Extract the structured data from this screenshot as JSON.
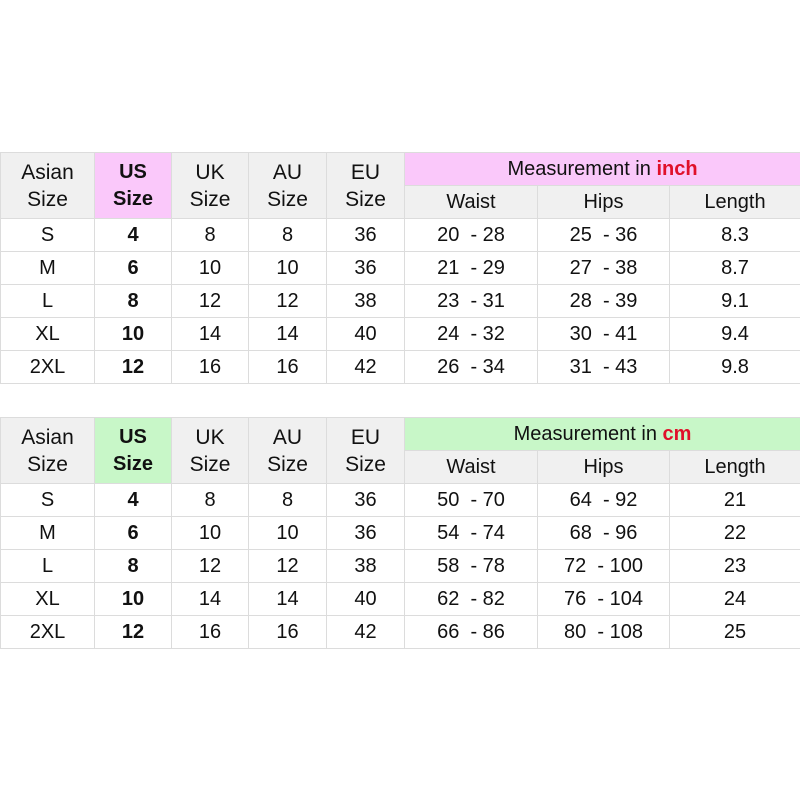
{
  "colors": {
    "inch_accent": "#fac8fa",
    "cm_accent": "#c8f7c8",
    "unit_text": "#e0102a",
    "header_bg": "#f0f0f0"
  },
  "headers": {
    "asian": [
      "Asian",
      "Size"
    ],
    "us": [
      "US",
      "Size"
    ],
    "uk": [
      "UK",
      "Size"
    ],
    "au": [
      "AU",
      "Size"
    ],
    "eu": [
      "EU",
      "Size"
    ],
    "sub": [
      "Waist",
      "Hips",
      "Length"
    ]
  },
  "tables": [
    {
      "measurement_prefix": "Measurement in ",
      "unit": "inch",
      "rows": [
        [
          "S",
          "4",
          "8",
          "8",
          "36",
          "20  - 28",
          "25  - 36",
          "8.3"
        ],
        [
          "M",
          "6",
          "10",
          "10",
          "36",
          "21  - 29",
          "27  - 38",
          "8.7"
        ],
        [
          "L",
          "8",
          "12",
          "12",
          "38",
          "23  - 31",
          "28  - 39",
          "9.1"
        ],
        [
          "XL",
          "10",
          "14",
          "14",
          "40",
          "24  - 32",
          "30  - 41",
          "9.4"
        ],
        [
          "2XL",
          "12",
          "16",
          "16",
          "42",
          "26  - 34",
          "31  - 43",
          "9.8"
        ]
      ]
    },
    {
      "measurement_prefix": "Measurement in ",
      "unit": "cm",
      "rows": [
        [
          "S",
          "4",
          "8",
          "8",
          "36",
          "50  - 70",
          "64  - 92",
          "21"
        ],
        [
          "M",
          "6",
          "10",
          "10",
          "36",
          "54  - 74",
          "68  - 96",
          "22"
        ],
        [
          "L",
          "8",
          "12",
          "12",
          "38",
          "58  - 78",
          "72  - 100",
          "23"
        ],
        [
          "XL",
          "10",
          "14",
          "14",
          "40",
          "62  - 82",
          "76  - 104",
          "24"
        ],
        [
          "2XL",
          "12",
          "16",
          "16",
          "42",
          "66  - 86",
          "80  - 108",
          "25"
        ]
      ]
    }
  ]
}
